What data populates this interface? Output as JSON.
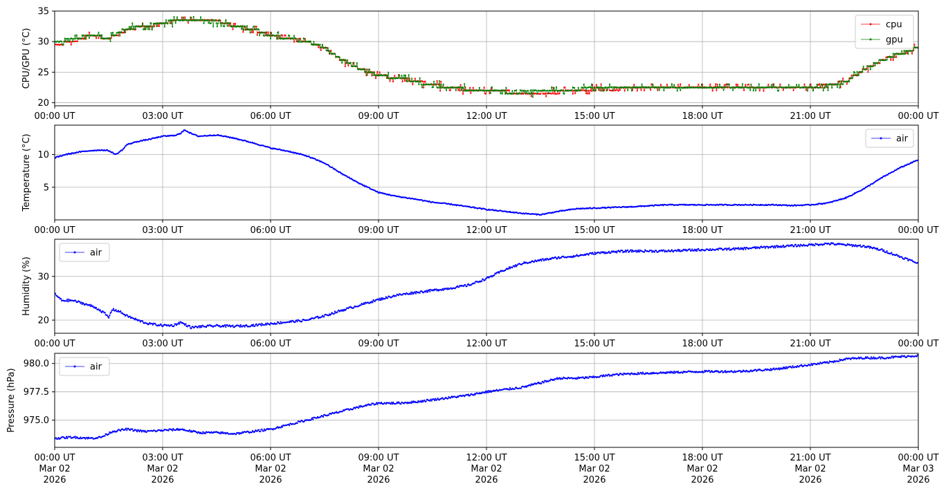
{
  "chart_data": [
    {
      "type": "line",
      "ylabel": "CPU/GPU (°C)",
      "xlim": [
        "00:00",
        "24:00"
      ],
      "ylim": [
        19.5,
        35
      ],
      "yticks": [
        20,
        25,
        30,
        35
      ],
      "xtick_labels": [
        "00:00 UT",
        "03:00 UT",
        "06:00 UT",
        "09:00 UT",
        "12:00 UT",
        "15:00 UT",
        "18:00 UT",
        "21:00 UT",
        "00:00 UT"
      ],
      "grid": true,
      "legend_position": "upper-right",
      "series": [
        {
          "name": "cpu",
          "color": "#ff0000",
          "points": [
            [
              0,
              29.5
            ],
            [
              0.5,
              30
            ],
            [
              1,
              31
            ],
            [
              1.5,
              30.5
            ],
            [
              2,
              32
            ],
            [
              2.5,
              32.5
            ],
            [
              3,
              33
            ],
            [
              3.5,
              33.5
            ],
            [
              4,
              33.5
            ],
            [
              4.5,
              33.5
            ],
            [
              5,
              32.5
            ],
            [
              5.5,
              32
            ],
            [
              6,
              31
            ],
            [
              6.5,
              30.5
            ],
            [
              7,
              30
            ],
            [
              7.5,
              29
            ],
            [
              8,
              27
            ],
            [
              8.5,
              25.5
            ],
            [
              9,
              24.5
            ],
            [
              9.5,
              24
            ],
            [
              10,
              23.5
            ],
            [
              10.5,
              23
            ],
            [
              11,
              22.5
            ],
            [
              11.5,
              22
            ],
            [
              12,
              22
            ],
            [
              12.5,
              21.8
            ],
            [
              13,
              21.5
            ],
            [
              13.5,
              21.5
            ],
            [
              14,
              21.8
            ],
            [
              14.5,
              22
            ],
            [
              15,
              22.2
            ],
            [
              16,
              22.3
            ],
            [
              17,
              22.4
            ],
            [
              18,
              22.5
            ],
            [
              19,
              22.5
            ],
            [
              20,
              22.5
            ],
            [
              21,
              22.6
            ],
            [
              21.5,
              22.8
            ],
            [
              22,
              23.5
            ],
            [
              22.5,
              25.5
            ],
            [
              23,
              27
            ],
            [
              23.5,
              28
            ],
            [
              24,
              29
            ]
          ]
        },
        {
          "name": "gpu",
          "color": "#008000",
          "points": [
            [
              0,
              30
            ],
            [
              0.5,
              30.3
            ],
            [
              1,
              31
            ],
            [
              1.5,
              30.6
            ],
            [
              2,
              32.1
            ],
            [
              2.5,
              32.6
            ],
            [
              3,
              33
            ],
            [
              3.5,
              33.6
            ],
            [
              4,
              33.4
            ],
            [
              4.5,
              33.3
            ],
            [
              5,
              32.5
            ],
            [
              5.5,
              32.1
            ],
            [
              6,
              31
            ],
            [
              6.5,
              30.5
            ],
            [
              7,
              30
            ],
            [
              7.5,
              29
            ],
            [
              8,
              27
            ],
            [
              8.5,
              25.5
            ],
            [
              9,
              24.5
            ],
            [
              9.5,
              24
            ],
            [
              10,
              23.5
            ],
            [
              10.5,
              22.8
            ],
            [
              11,
              22.5
            ],
            [
              11.5,
              22.2
            ],
            [
              12,
              22
            ],
            [
              12.5,
              21.8
            ],
            [
              13,
              21.7
            ],
            [
              13.5,
              21.8
            ],
            [
              14,
              22
            ],
            [
              14.5,
              22.2
            ],
            [
              15,
              22.3
            ],
            [
              16,
              22.4
            ],
            [
              17,
              22.5
            ],
            [
              18,
              22.5
            ],
            [
              19,
              22.5
            ],
            [
              20,
              22.5
            ],
            [
              21,
              22.6
            ],
            [
              21.5,
              22.8
            ],
            [
              22,
              23.5
            ],
            [
              22.5,
              25.5
            ],
            [
              23,
              27
            ],
            [
              23.5,
              28
            ],
            [
              24,
              29
            ]
          ]
        }
      ]
    },
    {
      "type": "line",
      "ylabel": "Temperature (°C)",
      "xlim": [
        "00:00",
        "24:00"
      ],
      "ylim": [
        0,
        14.5
      ],
      "yticks": [
        5,
        10
      ],
      "xtick_labels": [
        "00:00 UT",
        "03:00 UT",
        "06:00 UT",
        "09:00 UT",
        "12:00 UT",
        "15:00 UT",
        "18:00 UT",
        "21:00 UT",
        "00:00 UT"
      ],
      "grid": true,
      "legend_position": "upper-right",
      "series": [
        {
          "name": "air",
          "color": "#0000ff",
          "points": [
            [
              0,
              9.5
            ],
            [
              0.3,
              10
            ],
            [
              0.7,
              10.4
            ],
            [
              1,
              10.6
            ],
            [
              1.3,
              10.7
            ],
            [
              1.5,
              10.6
            ],
            [
              1.7,
              10
            ],
            [
              1.9,
              10.8
            ],
            [
              2,
              11.5
            ],
            [
              2.3,
              12
            ],
            [
              2.6,
              12.3
            ],
            [
              3,
              12.8
            ],
            [
              3.3,
              12.9
            ],
            [
              3.5,
              13.2
            ],
            [
              3.6,
              13.8
            ],
            [
              3.8,
              13.2
            ],
            [
              4,
              12.8
            ],
            [
              4.5,
              13
            ],
            [
              5,
              12.5
            ],
            [
              5.5,
              11.8
            ],
            [
              6,
              11
            ],
            [
              6.5,
              10.5
            ],
            [
              7,
              9.8
            ],
            [
              7.5,
              8.7
            ],
            [
              8,
              7
            ],
            [
              8.5,
              5.5
            ],
            [
              9,
              4.2
            ],
            [
              9.5,
              3.6
            ],
            [
              10,
              3.2
            ],
            [
              10.5,
              2.7
            ],
            [
              11,
              2.4
            ],
            [
              11.5,
              2
            ],
            [
              12,
              1.6
            ],
            [
              12.5,
              1.3
            ],
            [
              13,
              1
            ],
            [
              13.5,
              0.8
            ],
            [
              14,
              1.3
            ],
            [
              14.5,
              1.7
            ],
            [
              15,
              1.8
            ],
            [
              16,
              2
            ],
            [
              17,
              2.3
            ],
            [
              18,
              2.3
            ],
            [
              19,
              2.3
            ],
            [
              20,
              2.3
            ],
            [
              20.5,
              2.2
            ],
            [
              21,
              2.3
            ],
            [
              21.5,
              2.6
            ],
            [
              22,
              3.4
            ],
            [
              22.5,
              4.8
            ],
            [
              23,
              6.5
            ],
            [
              23.5,
              8
            ],
            [
              24,
              9.2
            ]
          ]
        }
      ]
    },
    {
      "type": "line",
      "ylabel": "Humidity (%)",
      "xlim": [
        "00:00",
        "24:00"
      ],
      "ylim": [
        17,
        38.5
      ],
      "yticks": [
        20,
        30
      ],
      "xtick_labels": [
        "00:00 UT",
        "03:00 UT",
        "06:00 UT",
        "09:00 UT",
        "12:00 UT",
        "15:00 UT",
        "18:00 UT",
        "21:00 UT",
        "00:00 UT"
      ],
      "grid": true,
      "legend_position": "upper-left",
      "series": [
        {
          "name": "air",
          "color": "#0000ff",
          "points": [
            [
              0,
              26
            ],
            [
              0.2,
              24.5
            ],
            [
              0.5,
              24.5
            ],
            [
              0.8,
              23.8
            ],
            [
              1,
              23.3
            ],
            [
              1.2,
              22.6
            ],
            [
              1.4,
              21.5
            ],
            [
              1.5,
              20.5
            ],
            [
              1.6,
              22.5
            ],
            [
              1.8,
              22
            ],
            [
              2,
              21
            ],
            [
              2.3,
              20
            ],
            [
              2.6,
              19.2
            ],
            [
              3,
              18.8
            ],
            [
              3.3,
              18.8
            ],
            [
              3.5,
              19.5
            ],
            [
              3.8,
              18.3
            ],
            [
              4,
              18.5
            ],
            [
              4.5,
              18.7
            ],
            [
              5,
              18.6
            ],
            [
              5.5,
              18.8
            ],
            [
              6,
              19.2
            ],
            [
              6.5,
              19.6
            ],
            [
              7,
              20
            ],
            [
              7.5,
              21
            ],
            [
              8,
              22.3
            ],
            [
              8.5,
              23.5
            ],
            [
              9,
              24.7
            ],
            [
              9.5,
              25.7
            ],
            [
              10,
              26.3
            ],
            [
              10.5,
              26.8
            ],
            [
              11,
              27.3
            ],
            [
              11.5,
              28
            ],
            [
              12,
              29.5
            ],
            [
              12.5,
              31.5
            ],
            [
              13,
              33
            ],
            [
              13.5,
              33.7
            ],
            [
              14,
              34.3
            ],
            [
              14.5,
              34.7
            ],
            [
              15,
              35.3
            ],
            [
              15.5,
              35.6
            ],
            [
              16,
              35.8
            ],
            [
              17,
              35.8
            ],
            [
              18,
              36.1
            ],
            [
              19,
              36.3
            ],
            [
              20,
              36.8
            ],
            [
              21,
              37.2
            ],
            [
              21.5,
              37.5
            ],
            [
              22,
              37.2
            ],
            [
              22.5,
              36.9
            ],
            [
              23,
              36
            ],
            [
              23.5,
              34.5
            ],
            [
              24,
              33
            ]
          ]
        }
      ]
    },
    {
      "type": "line",
      "ylabel": "Pressure (hPa)",
      "xlim": [
        "00:00",
        "24:00"
      ],
      "ylim": [
        972.6,
        980.9
      ],
      "yticks": [
        975.0,
        977.5,
        980.0
      ],
      "ytick_labels": [
        "975.0",
        "977.5",
        "980.0"
      ],
      "xtick_labels": [
        "00:00 UT\nMar 02\n2026",
        "03:00 UT\nMar 02\n2026",
        "06:00 UT\nMar 02\n2026",
        "09:00 UT\nMar 02\n2026",
        "12:00 UT\nMar 02\n2026",
        "15:00 UT\nMar 02\n2026",
        "18:00 UT\nMar 02\n2026",
        "21:00 UT\nMar 02\n2026",
        "00:00 UT\nMar 03\n2026"
      ],
      "grid": true,
      "legend_position": "upper-left",
      "series": [
        {
          "name": "air",
          "color": "#0000ff",
          "points": [
            [
              0,
              973.4
            ],
            [
              0.5,
              973.5
            ],
            [
              1,
              973.4
            ],
            [
              1.3,
              973.5
            ],
            [
              1.6,
              974
            ],
            [
              2,
              974.2
            ],
            [
              2.5,
              974
            ],
            [
              3,
              974.1
            ],
            [
              3.5,
              974.2
            ],
            [
              4,
              973.9
            ],
            [
              4.5,
              973.9
            ],
            [
              5,
              973.8
            ],
            [
              5.5,
              974
            ],
            [
              6,
              974.2
            ],
            [
              6.5,
              974.6
            ],
            [
              7,
              975
            ],
            [
              7.5,
              975.4
            ],
            [
              8,
              975.8
            ],
            [
              8.5,
              976.2
            ],
            [
              9,
              976.5
            ],
            [
              9.5,
              976.5
            ],
            [
              10,
              976.6
            ],
            [
              10.5,
              976.8
            ],
            [
              11,
              977
            ],
            [
              11.5,
              977.2
            ],
            [
              12,
              977.5
            ],
            [
              12.5,
              977.7
            ],
            [
              13,
              977.9
            ],
            [
              13.5,
              978.3
            ],
            [
              14,
              978.7
            ],
            [
              14.5,
              978.7
            ],
            [
              15,
              978.8
            ],
            [
              15.5,
              979
            ],
            [
              16,
              979.1
            ],
            [
              17,
              979.2
            ],
            [
              18,
              979.3
            ],
            [
              19,
              979.3
            ],
            [
              19.5,
              979.4
            ],
            [
              20,
              979.5
            ],
            [
              20.5,
              979.7
            ],
            [
              21,
              979.9
            ],
            [
              21.5,
              980.1
            ],
            [
              22,
              980.4
            ],
            [
              22.5,
              980.5
            ],
            [
              23,
              980.5
            ],
            [
              23.5,
              980.6
            ],
            [
              24,
              980.7
            ]
          ]
        }
      ]
    }
  ]
}
